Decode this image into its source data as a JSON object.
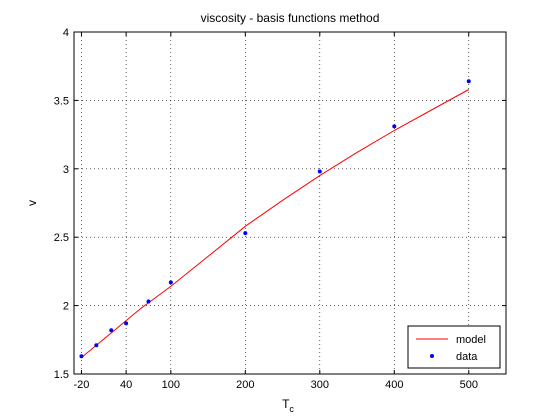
{
  "chart_data": {
    "type": "line",
    "title": "viscosity - basis functions method",
    "xlabel": "T",
    "xlabel_subscript": "c",
    "ylabel": "v",
    "xlim": [
      -30,
      550
    ],
    "ylim": [
      1.5,
      4
    ],
    "xticks": [
      -20,
      40,
      100,
      200,
      300,
      400,
      500
    ],
    "yticks": [
      1.5,
      2,
      2.5,
      3,
      3.5,
      4
    ],
    "grid": true,
    "legend_position": "bottom-right",
    "colors": {
      "model": "#ff0000",
      "data": "#0000ff"
    },
    "series": [
      {
        "name": "model",
        "style": "line",
        "x": [
          -20,
          0,
          20,
          40,
          60,
          80,
          100,
          150,
          200,
          250,
          300,
          350,
          400,
          450,
          500
        ],
        "y": [
          1.62,
          1.71,
          1.8,
          1.89,
          1.98,
          2.06,
          2.14,
          2.36,
          2.58,
          2.77,
          2.95,
          3.12,
          3.28,
          3.43,
          3.58
        ]
      },
      {
        "name": "data",
        "style": "markers",
        "x": [
          -20,
          0,
          20,
          40,
          70,
          100,
          200,
          300,
          400,
          500
        ],
        "y": [
          1.63,
          1.71,
          1.82,
          1.87,
          2.03,
          2.17,
          2.53,
          2.98,
          3.31,
          3.64
        ]
      }
    ]
  }
}
